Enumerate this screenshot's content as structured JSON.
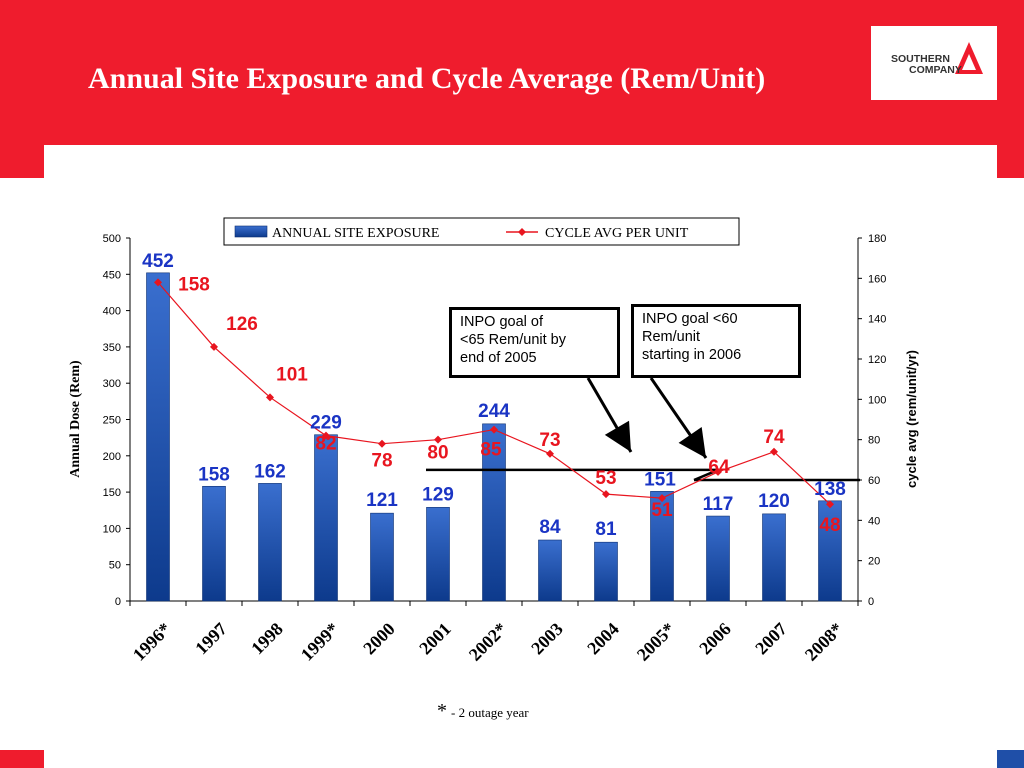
{
  "slide": {
    "title": "Annual Site Exposure and Cycle Average (Rem/Unit)",
    "logo_line1": "SOUTHERN",
    "logo_line2": "COMPANY",
    "footnote_star": "*",
    "footnote_text": "- 2 outage year",
    "colors": {
      "band": "#ef1c2d",
      "bar": "#1f4fa8",
      "line": "#e8151f",
      "corner_blue": "#1f4fa8"
    }
  },
  "annotations": {
    "note1": [
      "INPO goal of",
      "<65 Rem/unit by",
      "end of 2005"
    ],
    "note2": [
      "INPO goal <60",
      "Rem/unit",
      "starting in  2006"
    ]
  },
  "chart_data": {
    "type": "bar",
    "categories": [
      "1996*",
      "1997",
      "1998",
      "1999*",
      "2000",
      "2001",
      "2002*",
      "2003",
      "2004",
      "2005*",
      "2006",
      "2007",
      "2008*"
    ],
    "ylabel": "Annual Dose (Rem)",
    "y2label": "cycle avg (rem/unit/yr)",
    "ylim": [
      0,
      500
    ],
    "y2lim": [
      0,
      180
    ],
    "yticks": [
      0,
      50,
      100,
      150,
      200,
      250,
      300,
      350,
      400,
      450,
      500
    ],
    "y2ticks": [
      0,
      20,
      40,
      60,
      80,
      100,
      120,
      140,
      160,
      180
    ],
    "legend_position": "top-center",
    "grid": false,
    "series": [
      {
        "name": "ANNUAL SITE EXPOSURE",
        "type": "bar",
        "axis": "left",
        "color": "#1f4fa8",
        "values": [
          452,
          158,
          162,
          229,
          121,
          129,
          244,
          84,
          81,
          151,
          117,
          120,
          138
        ],
        "labels": [
          "452",
          "158",
          "162",
          "229",
          "121",
          "129",
          "244",
          "84",
          "81",
          "151",
          "117",
          "120",
          "138"
        ]
      },
      {
        "name": "CYCLE AVG PER UNIT",
        "type": "line",
        "axis": "right",
        "color": "#e8151f",
        "values": [
          158,
          126,
          101,
          82,
          78,
          80,
          85,
          73,
          53,
          51,
          64,
          74,
          48
        ],
        "labels": [
          "158",
          "126",
          "101",
          "82",
          "78",
          "80",
          "85",
          "73",
          "53",
          "51",
          "64",
          "74",
          "48"
        ]
      }
    ],
    "goal_lines": [
      {
        "from": "2001",
        "to": "2005*",
        "value": 65
      },
      {
        "from": "2006",
        "to": "2008*",
        "value": 60
      }
    ]
  }
}
